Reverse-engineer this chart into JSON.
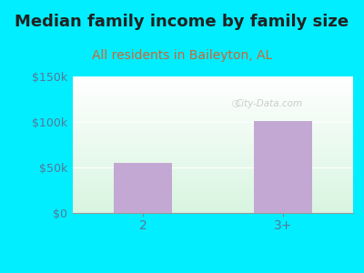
{
  "title": "Median family income by family size",
  "subtitle": "All residents in Baileyton, AL",
  "categories": [
    "2",
    "3+"
  ],
  "values": [
    55000,
    101000
  ],
  "bar_color": "#c4a8d4",
  "background_outer": "#00eeff",
  "ylim": [
    0,
    150000
  ],
  "yticks": [
    0,
    50000,
    100000,
    150000
  ],
  "ytick_labels": [
    "$0",
    "$50k",
    "$100k",
    "$150k"
  ],
  "title_fontsize": 13,
  "title_fontweight": "bold",
  "title_color": "#222222",
  "subtitle_fontsize": 10,
  "subtitle_color": "#cc6633",
  "tick_color": "#557799",
  "watermark": "City-Data.com"
}
